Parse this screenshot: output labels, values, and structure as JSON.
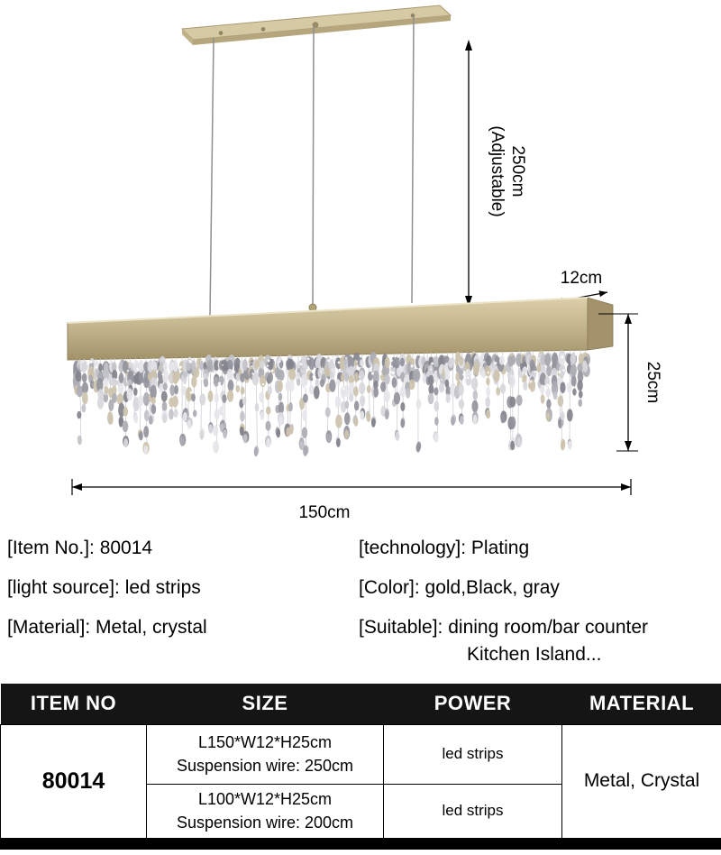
{
  "diagram": {
    "suspension_length": "250cm",
    "suspension_note": "(Adjustable)",
    "depth_label": "12cm",
    "height_label": "25cm",
    "length_label": "150cm",
    "colors": {
      "plate": "#d6caa5",
      "plate_edge": "#b5a67e",
      "gold_side": "#a3926a",
      "wire": "#8f8f8f"
    },
    "crystal_palette": [
      "#d7d7dc",
      "#c2c2c9",
      "#ababb3",
      "#94949d",
      "#e6e6ea",
      "#83838d",
      "#cdc3ae"
    ]
  },
  "specs": {
    "left": [
      "[Item No.]: 80014",
      "[light source]: led strips",
      "[Material]: Metal, crystal"
    ],
    "right": [
      "[technology]: Plating",
      "[Color]: gold,Black, gray",
      "[Suitable]: dining room/bar counter"
    ],
    "right_continuation": "Kitchen Island..."
  },
  "table": {
    "headers": [
      "ITEM NO",
      "SIZE",
      "POWER",
      "MATERIAL"
    ],
    "item_no": "80014",
    "material": "Metal, Crystal",
    "rows": [
      {
        "size": "L150*W12*H25cm",
        "wire": "Suspension wire: 250cm",
        "power": "led strips"
      },
      {
        "size": "L100*W12*H25cm",
        "wire": "Suspension wire: 200cm",
        "power": "led strips"
      }
    ]
  }
}
